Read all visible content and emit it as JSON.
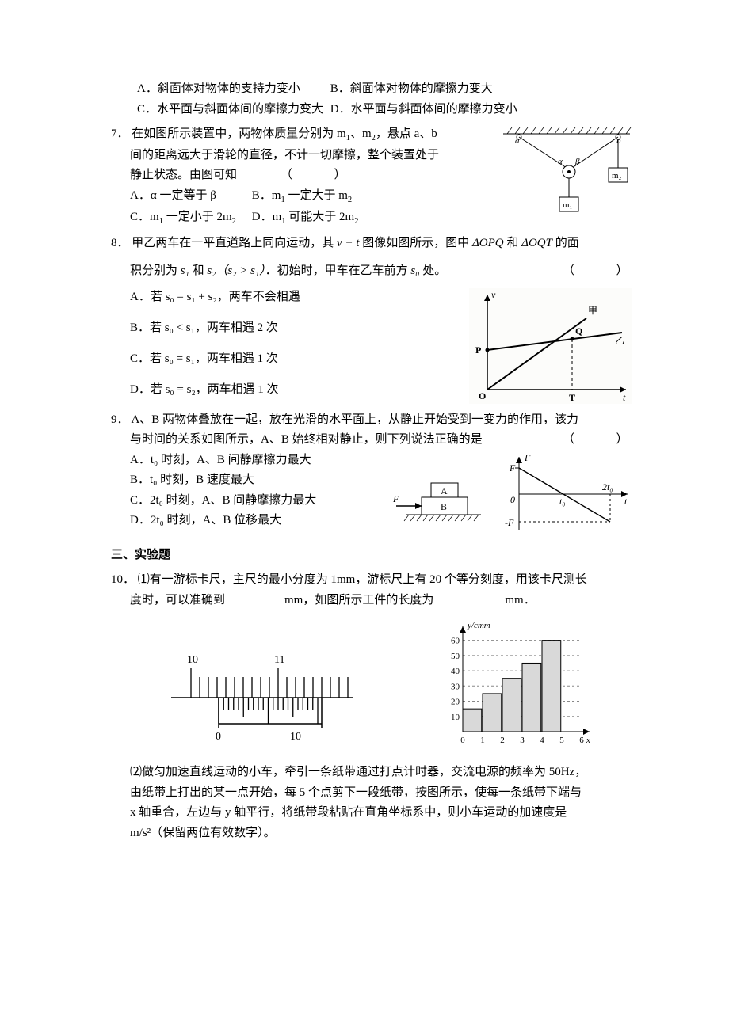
{
  "q6": {
    "optA": "A．斜面体对物体的支持力变小",
    "optB": "B．斜面体对物体的摩擦力变大",
    "optC": "C．水平面与斜面体间的摩擦力变大",
    "optD": "D．水平面与斜面体间的摩擦力变小"
  },
  "q7": {
    "num": "7．",
    "stem1": "在如图所示装置中，两物体质量分别为 m",
    "stem2": "、m",
    "stem3": "，悬点 a、b",
    "line2": "间的距离远大于滑轮的直径，不计一切摩擦，整个装置处于",
    "line3a": "静止状态。由图可知",
    "paren": "（　　）",
    "optA1": "A．α 一定等于 β",
    "optB1": "B．m",
    "optB2": " 一定大于 m",
    "optC1": "C．m",
    "optC2": " 一定小于 2m",
    "optD1": "D．m",
    "optD2": " 可能大于 2m",
    "fig": {
      "a": "a",
      "b": "b",
      "alpha": "α",
      "beta": "β",
      "m1": "m₁",
      "m2": "m₂",
      "ceiling_color": "#000",
      "line_color": "#000",
      "box_fill": "#fff"
    }
  },
  "q8": {
    "num": "8．",
    "stem1": "甲乙两车在一平直道路上同向运动，其 ",
    "vt": "v − t",
    "stem2": " 图像如图所示，图中 ",
    "dOPQ": "ΔOPQ",
    "and": " 和 ",
    "dOQT": "ΔOQT",
    "stem3": " 的面",
    "line2a": "积分别为 ",
    "s1": "s₁",
    "line2b": " 和 ",
    "s2": "s₂",
    "cond": "（s₂ > s₁）",
    "line2c": "．初始时，甲车在乙车前方 ",
    "s0": "s₀",
    "line2d": " 处。",
    "paren": "（　　）",
    "optA": "A．若 s₀ = s₁ + s₂，两车不会相遇",
    "optB": "B．若 s₀ < s₁，两车相遇 2 次",
    "optC": "C．若 s₀ = s₁，两车相遇 1 次",
    "optD": "D．若 s₀ = s₂，两车相遇 1 次",
    "fig": {
      "v": "v",
      "t": "t",
      "O": "O",
      "P": "P",
      "Q": "Q",
      "T": "T",
      "jia": "甲",
      "yi": "乙",
      "axis_color": "#000"
    }
  },
  "q9": {
    "num": "9．",
    "stem1": "A、B 两物体叠放在一起，放在光滑的水平面上，从静止开始受到一变力的作用，该力",
    "line2": "与时间的关系如图所示，A、B 始终相对静止，则下列说法正确的是",
    "paren": "（　　）",
    "optA": "A．t₀ 时刻，A、B 间静摩擦力最大",
    "optB": "B．t₀ 时刻，B 速度最大",
    "optC": "C．2t₀ 时刻，A、B 间静摩擦力最大",
    "optD": "D．2t₀ 时刻，A、B 位移最大",
    "fig1": {
      "A": "A",
      "B": "B",
      "F": "F"
    },
    "fig2": {
      "Faxis": "F",
      "t": "t",
      "Fpos": "F",
      "Fneg": "-F",
      "t0": "t₀",
      "t2": "2t₀",
      "zero": "0"
    }
  },
  "sec3": "三、实验题",
  "q10": {
    "num": "10．",
    "p1a": "⑴有一游标卡尺，主尺的最小分度为 1mm，游标尺上有 20 个等分刻度，用该卡尺测长",
    "p1b": "度时，可以准确到",
    "unit_mm": "mm，如图所示工件的长度为",
    "unit_mm2": "mm．",
    "caliper": {
      "main_marks": [
        "10",
        "11"
      ],
      "vernier_marks": [
        "0",
        "10"
      ],
      "tick_color": "#000"
    },
    "barchart": {
      "type": "bar",
      "ylabel": "y/cmm",
      "xlabel": "x",
      "x_categories": [
        "0",
        "1",
        "2",
        "3",
        "4",
        "5",
        "6"
      ],
      "y_ticks": [
        10,
        20,
        30,
        40,
        50,
        60
      ],
      "values": [
        15,
        25,
        35,
        45,
        60
      ],
      "bar_fill": "#d9d9d9",
      "bar_stroke": "#000",
      "axis_color": "#000",
      "grid_color": "#888",
      "ylim": [
        0,
        65
      ]
    },
    "p2a": "⑵做匀加速直线运动的小车，牵引一条纸带通过打点计时器，交流电源的频率为 50Hz，",
    "p2b": "由纸带上打出的某一点开始，每 5 个点剪下一段纸带，按图所示，使每一条纸带下端与",
    "p2c": "x 轴重合，左边与 y 轴平行，将纸带段粘贴在直角坐标系中，则小车运动的加速度是",
    "p2d": "m/s²（保留两位有效数字）。"
  }
}
